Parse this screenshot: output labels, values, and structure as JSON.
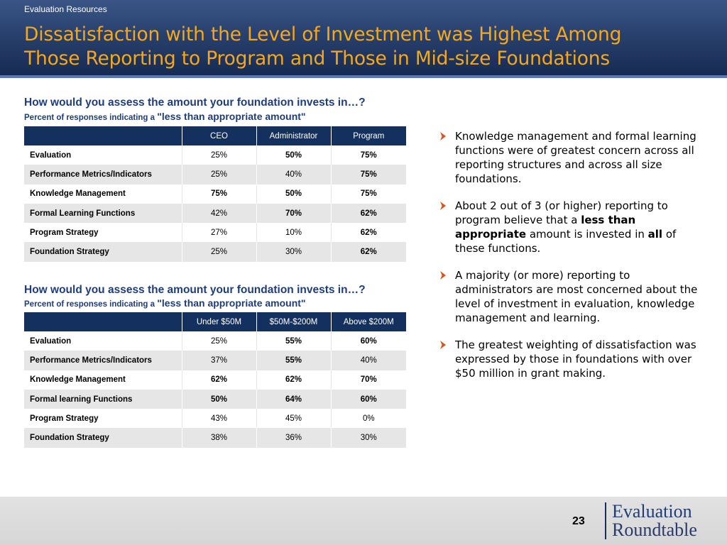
{
  "header": {
    "section_label": "Evaluation Resources",
    "title_line1": "Dissatisfaction with the Level of Investment was Highest Among",
    "title_line2": "Those Reporting to Program and Those in Mid-size Foundations"
  },
  "table1": {
    "question": "How would you assess the amount your foundation invests in…?",
    "sub_prefix": "Percent of responses indicating a ",
    "sub_emph": "\"less than appropriate amount\"",
    "headers": [
      "",
      "CEO",
      "Administrator",
      "Program"
    ],
    "rows": [
      {
        "label": "Evaluation",
        "values": [
          "25%",
          "50%",
          "75%"
        ]
      },
      {
        "label": "Performance Metrics/Indicators",
        "values": [
          "25%",
          "40%",
          "75%"
        ]
      },
      {
        "label": "Knowledge Management",
        "values": [
          "75%",
          "50%",
          "75%"
        ]
      },
      {
        "label": "Formal Learning Functions",
        "values": [
          "42%",
          "70%",
          "62%"
        ]
      },
      {
        "label": "Program Strategy",
        "values": [
          "27%",
          "10%",
          "62%"
        ]
      },
      {
        "label": "Foundation Strategy",
        "values": [
          "25%",
          "30%",
          "62%"
        ]
      }
    ]
  },
  "table2": {
    "question": "How would you assess the amount your foundation invests in…?",
    "sub_prefix": "Percent of responses indicating a ",
    "sub_emph": "\"less than appropriate amount\"",
    "headers": [
      "",
      "Under $50M",
      "$50M-$200M",
      "Above $200M"
    ],
    "rows": [
      {
        "label": "Evaluation",
        "values": [
          "25%",
          "55%",
          "60%"
        ]
      },
      {
        "label": "Performance Metrics/Indicators",
        "values": [
          "37%",
          "55%",
          "40%"
        ]
      },
      {
        "label": "Knowledge Management",
        "values": [
          "62%",
          "62%",
          "70%"
        ]
      },
      {
        "label": "Formal learning Functions",
        "values": [
          "50%",
          "64%",
          "60%"
        ]
      },
      {
        "label": "Program Strategy",
        "values": [
          "43%",
          "45%",
          "0%"
        ]
      },
      {
        "label": "Foundation Strategy",
        "values": [
          "38%",
          "36%",
          "30%"
        ]
      }
    ]
  },
  "bullets": {
    "b1": "Knowledge management and formal learning functions were of greatest concern across all reporting structures and across all size foundations.",
    "b2_part1": "About 2 out of 3 (or higher) reporting to program believe that a ",
    "b2_bold1": "less than appropriate",
    "b2_part2": " amount is invested in ",
    "b2_bold2": "all",
    "b2_part3": " of these functions.",
    "b3": "A majority (or more) reporting to administrators are most concerned about the level of investment in evaluation, knowledge management and learning.",
    "b4": "The greatest weighting of dissatisfaction was expressed by those in foundations with over $50 million in grant making."
  },
  "footer": {
    "page_number": "23",
    "logo_line1": "Evaluation",
    "logo_line2": "Roundtable"
  },
  "colors": {
    "title": "#f5a81c",
    "header_bg": "#1f3a68",
    "table_header": "#14305f",
    "question_text": "#1f3d7a",
    "bullet_arrow": "#d9531e"
  },
  "icons": {
    "bullet": "chevron-right-icon"
  }
}
